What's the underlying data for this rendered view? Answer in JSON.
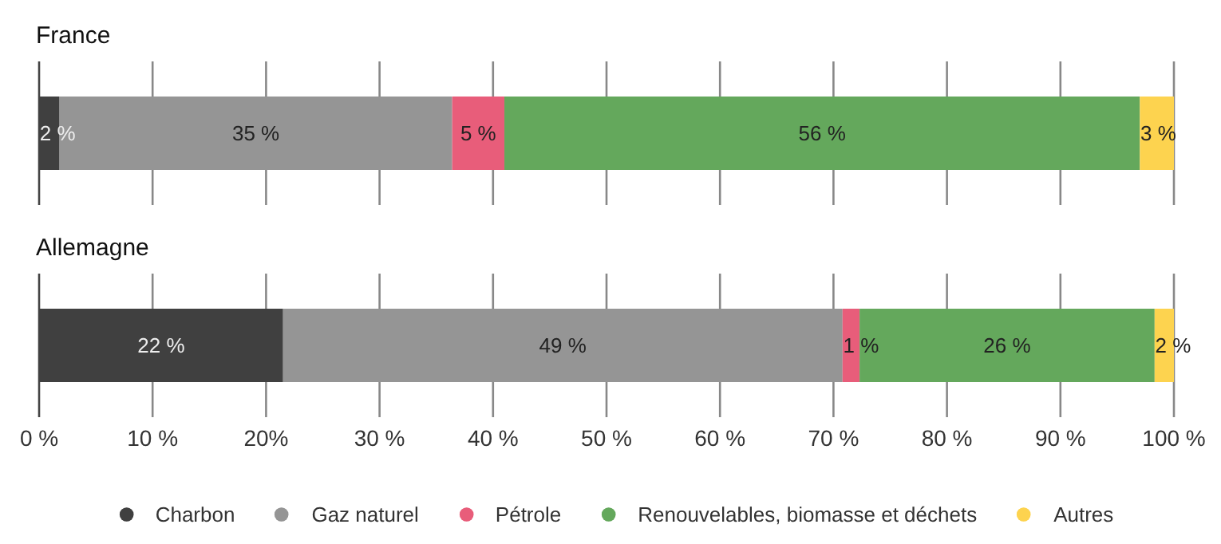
{
  "chart_data": [
    {
      "type": "bar",
      "title": "France",
      "orientation": "horizontal",
      "stacked": true,
      "categories": [
        null
      ],
      "xlim": [
        0,
        100
      ],
      "xticks": [
        0,
        10,
        20,
        30,
        40,
        50,
        60,
        70,
        80,
        90,
        100
      ],
      "grid": "x",
      "tick_labels": false,
      "series": [
        {
          "color": "#404040",
          "values": [
            1.8
          ],
          "value_labels": [
            "2 %"
          ]
        },
        {
          "color": "#959595",
          "values": [
            34.6
          ],
          "value_labels": [
            "35 %"
          ]
        },
        {
          "color": "#e85d7a",
          "values": [
            4.6
          ],
          "value_labels": [
            "5 %"
          ]
        },
        {
          "color": "#64a85c",
          "values": [
            56
          ],
          "value_labels": [
            "56 %"
          ]
        },
        {
          "color": "#fdd34f",
          "values": [
            3
          ],
          "value_labels": [
            "3 %"
          ]
        }
      ]
    },
    {
      "type": "bar",
      "title": "Allemagne",
      "orientation": "horizontal",
      "stacked": true,
      "categories": [
        null
      ],
      "xlim": [
        0,
        100
      ],
      "xticks": [
        {
          "value": 0,
          "label": "0 %"
        },
        {
          "value": 10,
          "label": "10 %"
        },
        {
          "value": 20,
          "label": "20%"
        },
        {
          "value": 30,
          "label": "30 %"
        },
        {
          "value": 40,
          "label": "40 %"
        },
        {
          "value": 50,
          "label": "50 %"
        },
        {
          "value": 60,
          "label": "60 %"
        },
        {
          "value": 70,
          "label": "70 %"
        },
        {
          "value": 80,
          "label": "80 %"
        },
        {
          "value": 90,
          "label": "90 %"
        },
        {
          "value": 100,
          "label": "100 %"
        }
      ],
      "grid": "x",
      "tick_labels": "x",
      "legend": "bottom",
      "series": [
        {
          "name": "Charbon",
          "color": "#404040",
          "values": [
            21.5
          ],
          "value_labels": [
            "22 %"
          ]
        },
        {
          "name": "Gaz naturel",
          "color": "#959595",
          "values": [
            49.3
          ],
          "value_labels": [
            "49 %"
          ]
        },
        {
          "name": "Pétrole",
          "color": "#e85d7a",
          "values": [
            1.5
          ],
          "value_labels": [
            "1 %"
          ]
        },
        {
          "name": "Renouvelables, biomasse et déchets",
          "color": "#64a85c",
          "values": [
            26
          ],
          "value_labels": [
            "26 %"
          ]
        },
        {
          "name": "Autres",
          "color": "#fdd34f",
          "values": [
            1.7
          ],
          "value_labels": [
            "2 %"
          ]
        }
      ]
    }
  ]
}
